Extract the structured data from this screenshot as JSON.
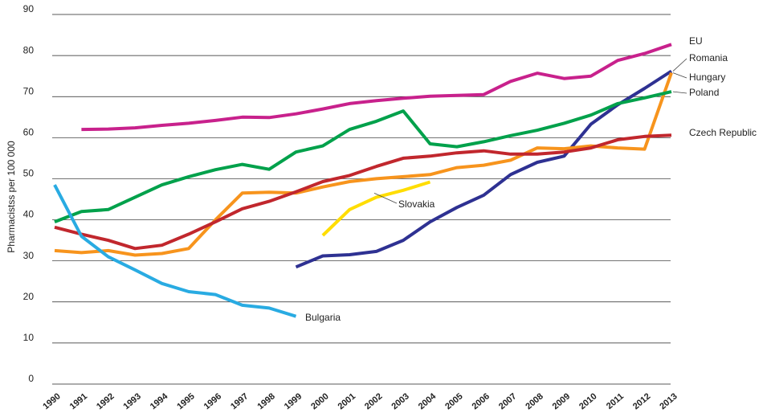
{
  "chart_data": {
    "type": "line",
    "y_label": "Pharmacistss per 100 000",
    "categories": [
      "1990",
      "1991",
      "1992",
      "1993",
      "1994",
      "1995",
      "1996",
      "1997",
      "1998",
      "1999",
      "2000",
      "2001",
      "2002",
      "2003",
      "2004",
      "2005",
      "2006",
      "2007",
      "2008",
      "2009",
      "2010",
      "2011",
      "2012",
      "2013"
    ],
    "ylim": [
      0,
      90
    ],
    "yticks": [
      0,
      10,
      20,
      30,
      40,
      50,
      60,
      70,
      80,
      90
    ],
    "grid": true,
    "series": [
      {
        "name": "EU",
        "color": "#c8218c",
        "values": [
          null,
          62,
          62.1,
          62.4,
          63,
          63.5,
          64.2,
          65,
          64.9,
          65.8,
          67,
          68.3,
          69,
          69.6,
          70.1,
          70.3,
          70.5,
          73.7,
          75.7,
          74.4,
          75,
          78.8,
          80.5,
          82.7
        ]
      },
      {
        "name": "Romania",
        "color": "#2e3192",
        "values": [
          null,
          null,
          null,
          null,
          null,
          null,
          null,
          null,
          null,
          28.5,
          31.2,
          31.5,
          32.3,
          35,
          39.5,
          43,
          46,
          51,
          54,
          55.5,
          63.3,
          68,
          72,
          76.2
        ]
      },
      {
        "name": "Hungary",
        "color": "#f7941d",
        "values": [
          32.5,
          32,
          32.5,
          31.4,
          31.8,
          33,
          40,
          46.5,
          46.7,
          46.5,
          48,
          49.3,
          50,
          50.5,
          51,
          52.7,
          53.3,
          54.5,
          57.5,
          57.3,
          58,
          57.5,
          57.2,
          75.8
        ]
      },
      {
        "name": "Poland",
        "color": "#00a14b",
        "values": [
          39.5,
          42,
          42.5,
          45.5,
          48.5,
          50.5,
          52.2,
          53.5,
          52.3,
          56.5,
          58,
          62,
          64,
          66.5,
          58.5,
          57.8,
          59,
          60.5,
          61.8,
          63.5,
          65.5,
          68.3,
          69.7,
          71.2
        ]
      },
      {
        "name": "Czech Republic",
        "color": "#c1272d",
        "values": [
          38.2,
          36.5,
          35,
          33,
          33.8,
          36.5,
          39.5,
          42.7,
          44.5,
          46.8,
          49.3,
          50.8,
          53,
          55,
          55.5,
          56.3,
          56.8,
          56,
          56,
          56.5,
          57.5,
          59.5,
          60.3,
          60.6
        ]
      },
      {
        "name": "Slovakia",
        "color": "#ffdd00",
        "values": [
          null,
          null,
          null,
          null,
          null,
          null,
          null,
          null,
          null,
          null,
          36.2,
          42.5,
          45.5,
          47.2,
          49.2,
          null,
          null,
          null,
          null,
          null,
          null,
          null,
          null,
          null
        ]
      },
      {
        "name": "Bulgaria",
        "color": "#29abe2",
        "values": [
          48.5,
          36,
          31,
          27.8,
          24.5,
          22.5,
          21.8,
          19.2,
          18.5,
          16.5,
          null,
          null,
          null,
          null,
          null,
          null,
          null,
          null,
          null,
          null,
          null,
          null,
          null,
          null
        ]
      }
    ]
  }
}
